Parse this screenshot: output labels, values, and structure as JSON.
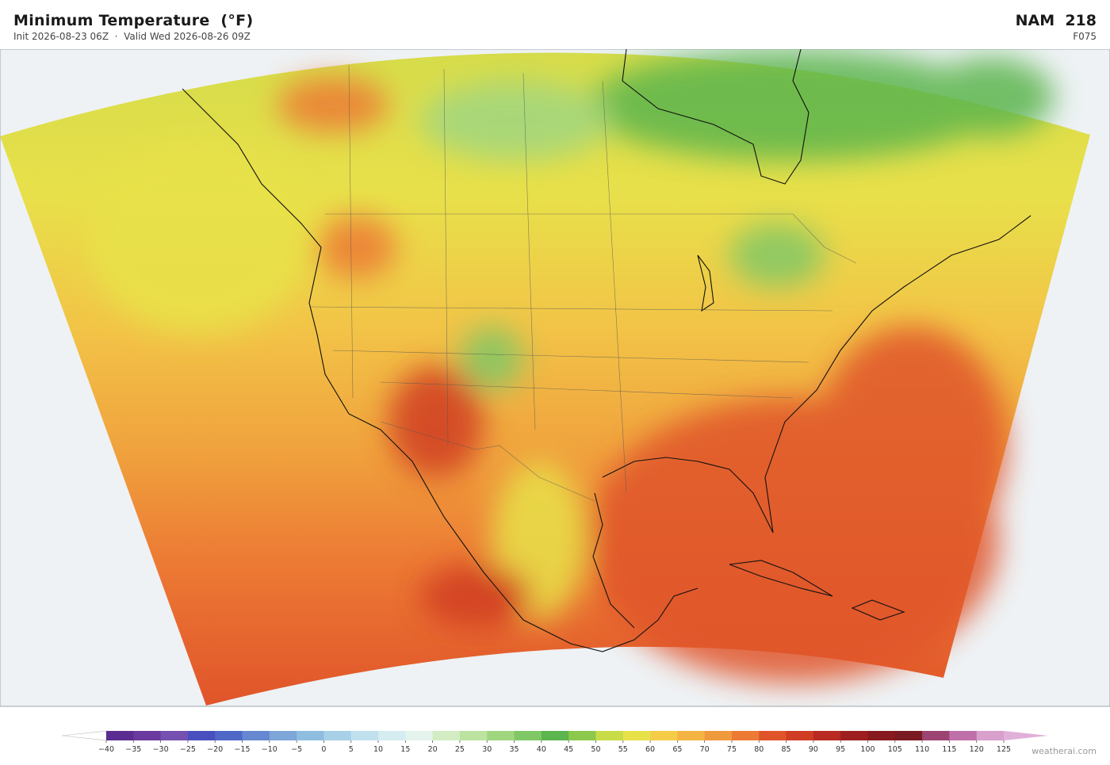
{
  "header": {
    "title": "Minimum Temperature  (°F)",
    "subtitle": "Init 2026-08-23 06Z  ·  Valid Wed 2026-08-26 09Z",
    "model": "NAM  218",
    "forecast_hour": "F075"
  },
  "colorbar": {
    "ticks": [
      {
        "value": -40,
        "label": "−40"
      },
      {
        "value": -35,
        "label": "−35"
      },
      {
        "value": -30,
        "label": "−30"
      },
      {
        "value": -25,
        "label": "−25"
      },
      {
        "value": -20,
        "label": "−20"
      },
      {
        "value": -15,
        "label": "−15"
      },
      {
        "value": -10,
        "label": "−10"
      },
      {
        "value": -5,
        "label": "−5"
      },
      0,
      5,
      10,
      15,
      20,
      25,
      30,
      35,
      40,
      45,
      50,
      55,
      60,
      65,
      70,
      75,
      80,
      85,
      90,
      95,
      100,
      105,
      110,
      115,
      120,
      125
    ],
    "colors": [
      "#5b2d91",
      "#6a3a9e",
      "#7550b0",
      "#4a4fbf",
      "#4f68c8",
      "#6688d0",
      "#7ea6d8",
      "#8fbde0",
      "#a8d0e8",
      "#c0e0ee",
      "#d5ecf0",
      "#e4f3ec",
      "#d4ecc4",
      "#bde3a0",
      "#a0d680",
      "#80c766",
      "#5cb54e",
      "#8cc84c",
      "#c8dc48",
      "#e8e24a",
      "#f4cc48",
      "#f4b444",
      "#f09a3e",
      "#ec7a34",
      "#e0542a",
      "#d03c24",
      "#b82a22",
      "#9c1e1e",
      "#861a1e",
      "#7a1a22",
      "#9c4472",
      "#c070a8",
      "#d8a0cc"
    ],
    "under_color": "#ffffff",
    "over_color": "#e0b0d8"
  },
  "credit": "weatherai.com"
}
